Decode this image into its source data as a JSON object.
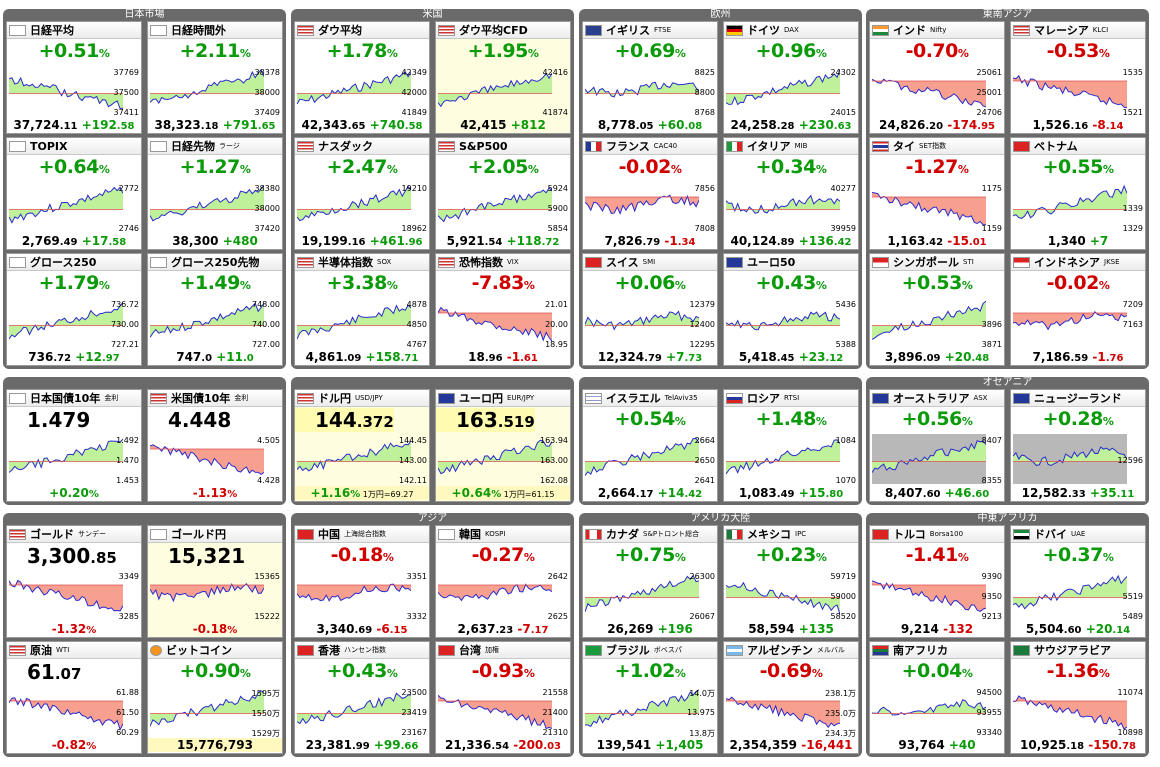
{
  "groups": [
    {
      "title": "日本市場",
      "cards": [
        {
          "name": "日経平均",
          "code": "",
          "flag": "jp",
          "mode": "change",
          "change": "+0.51",
          "dir": "up",
          "value": "37,724",
          "decimal": ".11",
          "diff": "+192",
          "diffdec": ".58",
          "hi": "37769",
          "mid": "37500",
          "lo": "37411",
          "shape": "fall"
        },
        {
          "name": "日経時間外",
          "code": "",
          "flag": "jp",
          "mode": "change",
          "change": "+2.11",
          "dir": "up",
          "value": "38,323",
          "decimal": ".18",
          "diff": "+791",
          "diffdec": ".65",
          "hi": "38378",
          "mid": "38000",
          "lo": "37409",
          "shape": "rise"
        },
        {
          "name": "TOPIX",
          "code": "",
          "flag": "jp",
          "mode": "change",
          "change": "+0.64",
          "dir": "up",
          "value": "2,769",
          "decimal": ".49",
          "diff": "+17",
          "diffdec": ".58",
          "hi": "2772",
          "mid": "",
          "lo": "2746",
          "shape": "rise"
        },
        {
          "name": "日経先物",
          "code": "ラージ",
          "flag": "jp",
          "mode": "change",
          "change": "+1.27",
          "dir": "up",
          "value": "38,300",
          "decimal": "",
          "diff": "+480",
          "diffdec": "",
          "hi": "38380",
          "mid": "38000",
          "lo": "37420",
          "shape": "rise"
        },
        {
          "name": "グロース250",
          "code": "",
          "flag": "jp",
          "mode": "change",
          "change": "+1.79",
          "dir": "up",
          "value": "736",
          "decimal": ".72",
          "diff": "+12",
          "diffdec": ".97",
          "hi": "736.72",
          "mid": "730.00",
          "lo": "727.21",
          "shape": "rise"
        },
        {
          "name": "グロース250先物",
          "code": "",
          "flag": "jp",
          "mode": "change",
          "change": "+1.49",
          "dir": "up",
          "value": "747",
          "decimal": ".0",
          "diff": "+11",
          "diffdec": ".0",
          "hi": "748.00",
          "mid": "740.00",
          "lo": "727.00",
          "shape": "rise"
        }
      ]
    },
    {
      "title": "米国",
      "cards": [
        {
          "name": "ダウ平均",
          "code": "",
          "flag": "us",
          "mode": "change",
          "change": "+1.78",
          "dir": "up",
          "value": "42,343",
          "decimal": ".65",
          "diff": "+740",
          "diffdec": ".58",
          "hi": "42349",
          "mid": "42000",
          "lo": "41849",
          "shape": "rise"
        },
        {
          "name": "ダウ平均CFD",
          "code": "",
          "flag": "us",
          "mode": "change",
          "change": "+1.95",
          "dir": "up",
          "value": "42,415",
          "decimal": "",
          "diff": "+812",
          "diffdec": "",
          "hi": "42416",
          "mid": "",
          "lo": "41874",
          "shape": "rise",
          "hl": true
        },
        {
          "name": "ナスダック",
          "code": "",
          "flag": "us",
          "mode": "change",
          "change": "+2.47",
          "dir": "up",
          "value": "19,199",
          "decimal": ".16",
          "diff": "+461",
          "diffdec": ".96",
          "hi": "19210",
          "mid": "",
          "lo": "18962",
          "shape": "rise"
        },
        {
          "name": "S&P500",
          "code": "",
          "flag": "us",
          "mode": "change",
          "change": "+2.05",
          "dir": "up",
          "value": "5,921",
          "decimal": ".54",
          "diff": "+118",
          "diffdec": ".72",
          "hi": "5924",
          "mid": "5900",
          "lo": "5854",
          "shape": "rise"
        },
        {
          "name": "半導体指数",
          "code": "SOX",
          "flag": "us",
          "mode": "change",
          "change": "+3.38",
          "dir": "up",
          "value": "4,861",
          "decimal": ".09",
          "diff": "+158",
          "diffdec": ".71",
          "hi": "4878",
          "mid": "4850",
          "lo": "4767",
          "shape": "rise"
        },
        {
          "name": "恐怖指数",
          "code": "VIX",
          "flag": "us",
          "mode": "change",
          "change": "-7.83",
          "dir": "dn",
          "value": "18",
          "decimal": ".96",
          "diff": "-1",
          "diffdec": ".61",
          "hi": "21.01",
          "mid": "20.00",
          "lo": "18.95",
          "shape": "fall"
        }
      ]
    },
    {
      "title": "欧州",
      "cards": [
        {
          "name": "イギリス",
          "code": "FTSE",
          "flag": "uk",
          "mode": "change",
          "change": "+0.69",
          "dir": "up",
          "value": "8,778",
          "decimal": ".05",
          "diff": "+60",
          "diffdec": ".08",
          "hi": "8825",
          "mid": "8800",
          "lo": "8768",
          "shape": "flat"
        },
        {
          "name": "ドイツ",
          "code": "DAX",
          "flag": "de",
          "mode": "change",
          "change": "+0.96",
          "dir": "up",
          "value": "24,258",
          "decimal": ".28",
          "diff": "+230",
          "diffdec": ".63",
          "hi": "24302",
          "mid": "",
          "lo": "24015",
          "shape": "rise"
        },
        {
          "name": "フランス",
          "code": "CAC40",
          "flag": "fr",
          "mode": "change",
          "change": "-0.02",
          "dir": "dn",
          "value": "7,826",
          "decimal": ".79",
          "diff": "-1",
          "diffdec": ".34",
          "hi": "7856",
          "mid": "",
          "lo": "7808",
          "shape": "flat"
        },
        {
          "name": "イタリア",
          "code": "MIB",
          "flag": "it",
          "mode": "change",
          "change": "+0.34",
          "dir": "up",
          "value": "40,124",
          "decimal": ".89",
          "diff": "+136",
          "diffdec": ".42",
          "hi": "40277",
          "mid": "",
          "lo": "39959",
          "shape": "flat"
        },
        {
          "name": "スイス",
          "code": "SMI",
          "flag": "ch",
          "mode": "change",
          "change": "+0.06",
          "dir": "up",
          "value": "12,324",
          "decimal": ".79",
          "diff": "+7",
          "diffdec": ".73",
          "hi": "12379",
          "mid": "12400",
          "lo": "12295",
          "shape": "flat"
        },
        {
          "name": "ユーロ50",
          "code": "",
          "flag": "eu",
          "mode": "change",
          "change": "+0.43",
          "dir": "up",
          "value": "5,418",
          "decimal": ".45",
          "diff": "+23",
          "diffdec": ".12",
          "hi": "5436",
          "mid": "",
          "lo": "5388",
          "shape": "flat"
        }
      ]
    },
    {
      "title": "東南アジア",
      "cards": [
        {
          "name": "インド",
          "code": "Nifty",
          "flag": "in",
          "mode": "change",
          "change": "-0.70",
          "dir": "dn",
          "value": "24,826",
          "decimal": ".20",
          "diff": "-174",
          "diffdec": ".95",
          "hi": "25061",
          "mid": "25001",
          "lo": "24706",
          "shape": "fall"
        },
        {
          "name": "マレーシア",
          "code": "KLCI",
          "flag": "my",
          "mode": "change",
          "change": "-0.53",
          "dir": "dn",
          "value": "1,526",
          "decimal": ".16",
          "diff": "-8",
          "diffdec": ".14",
          "hi": "1535",
          "mid": "",
          "lo": "1521",
          "shape": "fall"
        },
        {
          "name": "タイ",
          "code": "SET指数",
          "flag": "th",
          "mode": "change",
          "change": "-1.27",
          "dir": "dn",
          "value": "1,163",
          "decimal": ".42",
          "diff": "-15",
          "diffdec": ".01",
          "hi": "1175",
          "mid": "",
          "lo": "1159",
          "shape": "fall"
        },
        {
          "name": "ベトナム",
          "code": "",
          "flag": "vn",
          "mode": "change",
          "change": "+0.55",
          "dir": "up",
          "value": "1,340",
          "decimal": "",
          "diff": "+7",
          "diffdec": "",
          "hi": "",
          "mid": "1339",
          "lo": "1329",
          "shape": "rise"
        },
        {
          "name": "シンガポール",
          "code": "STI",
          "flag": "sg",
          "mode": "change",
          "change": "+0.53",
          "dir": "up",
          "value": "3,896",
          "decimal": ".09",
          "diff": "+20",
          "diffdec": ".48",
          "hi": "",
          "mid": "3896",
          "lo": "3871",
          "shape": "rise"
        },
        {
          "name": "インドネシア",
          "code": "JKSE",
          "flag": "id",
          "mode": "change",
          "change": "-0.02",
          "dir": "dn",
          "value": "7,186",
          "decimal": ".59",
          "diff": "-1",
          "diffdec": ".76",
          "hi": "7209",
          "mid": "7163",
          "lo": "",
          "shape": "flat"
        }
      ]
    },
    {
      "title": "",
      "cards": [
        {
          "name": "日本国債10年",
          "code": "金利",
          "flag": "jp",
          "mode": "big",
          "big": "1.479",
          "bigdec": "",
          "change": "+0.20",
          "dir": "up",
          "hi": "1.492",
          "mid": "1.470",
          "lo": "1.453",
          "shape": "rise"
        },
        {
          "name": "米国債10年",
          "code": "金利",
          "flag": "us",
          "mode": "big",
          "big": "4.448",
          "bigdec": "",
          "change": "-1.13",
          "dir": "dn",
          "hi": "4.505",
          "mid": "",
          "lo": "4.428",
          "shape": "fall"
        }
      ]
    },
    {
      "title": "",
      "cards": [
        {
          "name": "ドル円",
          "code": "USD/JPY",
          "flag": "us",
          "mode": "fx",
          "big": "144",
          "bigdec": ".372",
          "change": "+1.16",
          "dir": "up",
          "unit": "1万円=69.27",
          "hi": "144.45",
          "mid": "143.00",
          "lo": "142.11",
          "shape": "rise",
          "hl": true
        },
        {
          "name": "ユーロ円",
          "code": "EUR/JPY",
          "flag": "eu",
          "mode": "fx",
          "big": "163",
          "bigdec": ".519",
          "change": "+0.64",
          "dir": "up",
          "unit": "1万円=61.15",
          "hi": "163.94",
          "mid": "163.00",
          "lo": "162.08",
          "shape": "rise",
          "hl": true
        }
      ]
    },
    {
      "title": "",
      "cards": [
        {
          "name": "イスラエル",
          "code": "TelAviv35",
          "flag": "il",
          "mode": "change",
          "change": "+0.54",
          "dir": "up",
          "value": "2,664",
          "decimal": ".17",
          "diff": "+14",
          "diffdec": ".42",
          "hi": "2664",
          "mid": "2650",
          "lo": "2641",
          "shape": "rise"
        },
        {
          "name": "ロシア",
          "code": "RTSI",
          "flag": "ru",
          "mode": "change",
          "change": "+1.48",
          "dir": "up",
          "value": "1,083",
          "decimal": ".49",
          "diff": "+15",
          "diffdec": ".80",
          "hi": "1084",
          "mid": "",
          "lo": "1070",
          "shape": "rise"
        }
      ]
    },
    {
      "title": "オセアニア",
      "cards": [
        {
          "name": "オーストラリア",
          "code": "ASX",
          "flag": "au",
          "mode": "change",
          "change": "+0.56",
          "dir": "up",
          "value": "8,407",
          "decimal": ".60",
          "diff": "+46",
          "diffdec": ".60",
          "hi": "8407",
          "mid": "",
          "lo": "8355",
          "shape": "rise",
          "dark": true
        },
        {
          "name": "ニュージーランド",
          "code": "",
          "flag": "nz",
          "mode": "change",
          "change": "+0.28",
          "dir": "up",
          "value": "12,582",
          "decimal": ".33",
          "diff": "+35",
          "diffdec": ".11",
          "hi": "",
          "mid": "12596",
          "lo": "",
          "shape": "flat",
          "dark": true
        }
      ]
    },
    {
      "title": "",
      "cards": [
        {
          "name": "ゴールド",
          "code": "サンデー",
          "flag": "us",
          "mode": "big",
          "big": "3,300",
          "bigdec": ".85",
          "change": "-1.32",
          "dir": "dn",
          "hi": "3349",
          "mid": "",
          "lo": "3285",
          "shape": "fall"
        },
        {
          "name": "ゴールド円",
          "code": "",
          "flag": "jp",
          "mode": "big",
          "big": "15,321",
          "bigdec": "",
          "change": "-0.18",
          "dir": "dn",
          "hi": "15365",
          "mid": "",
          "lo": "15222",
          "shape": "flat",
          "hl": true
        },
        {
          "name": "原油",
          "code": "WTI",
          "flag": "us",
          "mode": "big",
          "big": "61",
          "bigdec": ".07",
          "change": "-0.82",
          "dir": "dn",
          "hi": "61.88",
          "mid": "61.50",
          "lo": "60.29",
          "shape": "fall"
        },
        {
          "name": "ビットコイン",
          "code": "",
          "flag": "btc",
          "mode": "changebig",
          "change": "+0.90",
          "dir": "up",
          "value": "15,776,793",
          "decimal": "",
          "hi": "1595万",
          "mid": "1550万",
          "lo": "1529万",
          "shape": "rise"
        }
      ]
    },
    {
      "title": "アジア",
      "cards": [
        {
          "name": "中国",
          "code": "上海総合指数",
          "flag": "cn",
          "mode": "change",
          "change": "-0.18",
          "dir": "dn",
          "value": "3,340",
          "decimal": ".69",
          "diff": "-6",
          "diffdec": ".15",
          "hi": "3351",
          "mid": "",
          "lo": "3332",
          "shape": "flat"
        },
        {
          "name": "韓国",
          "code": "KOSPI",
          "flag": "kr",
          "mode": "change",
          "change": "-0.27",
          "dir": "dn",
          "value": "2,637",
          "decimal": ".23",
          "diff": "-7",
          "diffdec": ".17",
          "hi": "2642",
          "mid": "",
          "lo": "2625",
          "shape": "flat"
        },
        {
          "name": "香港",
          "code": "ハンセン指数",
          "flag": "hk",
          "mode": "change",
          "change": "+0.43",
          "dir": "up",
          "value": "23,381",
          "decimal": ".99",
          "diff": "+99",
          "diffdec": ".66",
          "hi": "23500",
          "mid": "23419",
          "lo": "23167",
          "shape": "rise"
        },
        {
          "name": "台湾",
          "code": "加権",
          "flag": "tw",
          "mode": "change",
          "change": "-0.93",
          "dir": "dn",
          "value": "21,336",
          "decimal": ".54",
          "diff": "-200",
          "diffdec": ".03",
          "hi": "21558",
          "mid": "21400",
          "lo": "21310",
          "shape": "fall"
        }
      ]
    },
    {
      "title": "アメリカ大陸",
      "cards": [
        {
          "name": "カナダ",
          "code": "S&Pトロント総合",
          "flag": "ca",
          "mode": "change",
          "change": "+0.75",
          "dir": "up",
          "value": "26,269",
          "decimal": "",
          "diff": "+196",
          "diffdec": "",
          "hi": "26300",
          "mid": "",
          "lo": "26067",
          "shape": "rise"
        },
        {
          "name": "メキシコ",
          "code": "IPC",
          "flag": "mx",
          "mode": "change",
          "change": "+0.23",
          "dir": "up",
          "value": "58,594",
          "decimal": "",
          "diff": "+135",
          "diffdec": "",
          "hi": "59719",
          "mid": "59000",
          "lo": "58520",
          "shape": "fall"
        },
        {
          "name": "ブラジル",
          "code": "ボベスパ",
          "flag": "br",
          "mode": "change",
          "change": "+1.02",
          "dir": "up",
          "value": "139,541",
          "decimal": "",
          "diff": "+1,405",
          "diffdec": "",
          "hi": "14.0万",
          "mid": "13.975",
          "lo": "13.8万",
          "shape": "rise"
        },
        {
          "name": "アルゼンチン",
          "code": "メルバル",
          "flag": "ar",
          "mode": "change",
          "change": "-0.69",
          "dir": "dn",
          "value": "2,354,359",
          "decimal": "",
          "diff": "-16,441",
          "diffdec": "",
          "hi": "238.1万",
          "mid": "235.0万",
          "lo": "234.3万",
          "shape": "fall"
        }
      ]
    },
    {
      "title": "中東アフリカ",
      "cards": [
        {
          "name": "トルコ",
          "code": "Borsa100",
          "flag": "tr",
          "mode": "change",
          "change": "-1.41",
          "dir": "dn",
          "value": "9,214",
          "decimal": "",
          "diff": "-132",
          "diffdec": "",
          "hi": "9390",
          "mid": "9350",
          "lo": "9213",
          "shape": "fall"
        },
        {
          "name": "ドバイ",
          "code": "UAE",
          "flag": "ae",
          "mode": "change",
          "change": "+0.37",
          "dir": "up",
          "value": "5,504",
          "decimal": ".60",
          "diff": "+20",
          "diffdec": ".14",
          "hi": "",
          "mid": "5519",
          "lo": "5489",
          "shape": "rise"
        },
        {
          "name": "南アフリカ",
          "code": "",
          "flag": "za",
          "mode": "change",
          "change": "+0.04",
          "dir": "up",
          "value": "93,764",
          "decimal": "",
          "diff": "+40",
          "diffdec": "",
          "hi": "94500",
          "mid": "93955",
          "lo": "93340",
          "shape": "flat"
        },
        {
          "name": "サウジアラビア",
          "code": "",
          "flag": "sa",
          "mode": "change",
          "change": "-1.36",
          "dir": "dn",
          "value": "10,925",
          "decimal": ".18",
          "diff": "-150",
          "diffdec": ".78",
          "hi": "11074",
          "mid": "",
          "lo": "10898",
          "shape": "fall"
        }
      ]
    }
  ],
  "colors": {
    "up": "#0a9a0a",
    "down": "#d00000",
    "upFill": "#bff09a",
    "downFill": "#f7a090",
    "line": "#2a2ad0"
  }
}
